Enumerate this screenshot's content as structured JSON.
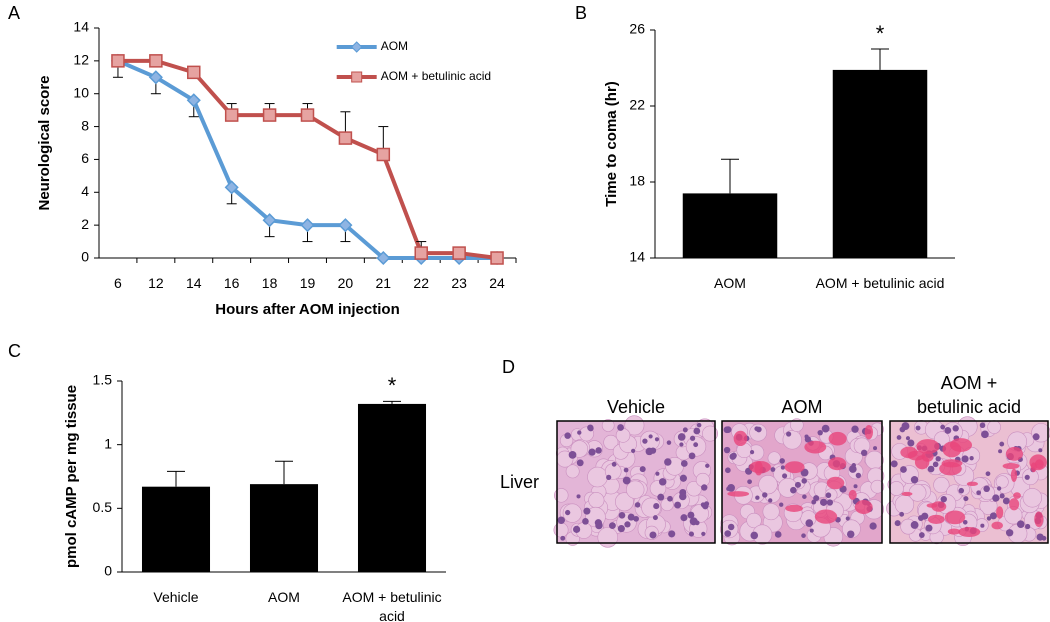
{
  "chart_data": [
    {
      "type": "line",
      "panel": "A",
      "x_label": "Hours after AOM injection",
      "y_label": "Neurological score",
      "categories": [
        "6",
        "12",
        "14",
        "16",
        "18",
        "19",
        "20",
        "21",
        "22",
        "23",
        "24"
      ],
      "series": [
        {
          "name": "AOM",
          "color": "#5b9bd5",
          "marker": "diamond",
          "error_side": "down",
          "values": [
            12,
            11,
            9.6,
            4.3,
            2.3,
            2,
            2,
            0,
            0,
            0,
            0
          ],
          "errors": [
            1,
            1,
            1,
            1,
            1,
            1,
            1,
            null,
            null,
            null,
            null
          ]
        },
        {
          "name": "AOM + betulinic acid",
          "color": "#c0504d",
          "marker": "square",
          "error_side": "up",
          "values": [
            12,
            12,
            11.3,
            8.7,
            8.7,
            8.7,
            7.3,
            6.3,
            0.3,
            0.3,
            0
          ],
          "errors": [
            null,
            null,
            null,
            0.7,
            0.7,
            0.7,
            1.6,
            1.7,
            0.7,
            null,
            null
          ]
        }
      ],
      "ylim": [
        0,
        14
      ],
      "yticks": [
        0,
        2,
        4,
        6,
        8,
        10,
        12,
        14
      ],
      "legend": "top"
    },
    {
      "type": "bar",
      "panel": "B",
      "y_label": "Time to coma (hr)",
      "categories": [
        "AOM",
        "AOM + betulinic acid"
      ],
      "values": [
        17.4,
        23.9
      ],
      "errors": [
        1.8,
        1.1
      ],
      "color": "#000000",
      "annotations": [
        {
          "text": "*",
          "x": "AOM + betulinic acid"
        }
      ],
      "ylim": [
        14,
        26
      ],
      "yticks": [
        14,
        18,
        22,
        26
      ]
    },
    {
      "type": "bar",
      "panel": "C",
      "y_label": "pmol cAMP per mg tissue",
      "categories": [
        "Vehicle",
        "AOM",
        "AOM + betulinic acid"
      ],
      "values": [
        0.67,
        0.69,
        1.32
      ],
      "errors": [
        0.12,
        0.18,
        0.02
      ],
      "color": "#000000",
      "annotations": [
        {
          "text": "*",
          "x": "AOM + betulinic acid"
        }
      ],
      "ylim": [
        0,
        1.5
      ],
      "yticks": [
        0,
        0.5,
        1,
        1.5
      ]
    }
  ],
  "panel_d": {
    "panel": "D",
    "tissue": "Liver",
    "columns": [
      "Vehicle",
      "AOM",
      "AOM + betulinic acid"
    ]
  }
}
